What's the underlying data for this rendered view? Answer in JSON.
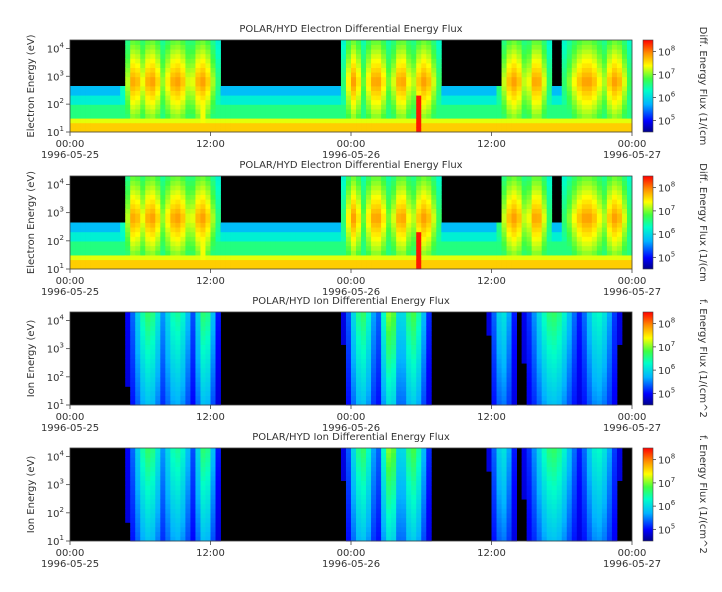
{
  "chart_data": [
    {
      "type": "heatmap",
      "title": "POLAR/HYD  Electron Differential Energy Flux",
      "ylabel": "Electron Energy (eV)",
      "colorbar_label": "Diff. Energy Flux (1/(cm",
      "y_scale": "log",
      "ylim": [
        10,
        20000
      ],
      "y_ticks": [
        "10",
        "10",
        "10",
        "10"
      ],
      "y_tick_exponents": [
        "1",
        "2",
        "3",
        "4"
      ],
      "x_ticks": [
        "00:00",
        "12:00",
        "00:00",
        "12:00",
        "00:00"
      ],
      "x_dates": [
        "1996-05-25",
        "",
        "1996-05-26",
        "",
        "1996-05-27"
      ],
      "colorbar_ticks": [
        "10",
        "10",
        "10",
        "10"
      ],
      "colorbar_exponents": [
        "5",
        "6",
        "7",
        "8"
      ]
    },
    {
      "type": "heatmap",
      "title": "POLAR/HYD  Electron Differential Energy Flux",
      "ylabel": "Electron Energy (eV)",
      "colorbar_label": "Diff. Energy Flux (1/(cm",
      "y_scale": "log",
      "ylim": [
        10,
        20000
      ],
      "y_ticks": [
        "10",
        "10",
        "10",
        "10"
      ],
      "y_tick_exponents": [
        "1",
        "2",
        "3",
        "4"
      ],
      "x_ticks": [
        "00:00",
        "12:00",
        "00:00",
        "12:00",
        "00:00"
      ],
      "x_dates": [
        "1996-05-25",
        "",
        "1996-05-26",
        "",
        "1996-05-27"
      ],
      "colorbar_ticks": [
        "10",
        "10",
        "10",
        "10"
      ],
      "colorbar_exponents": [
        "5",
        "6",
        "7",
        "8"
      ]
    },
    {
      "type": "heatmap",
      "title": "POLAR/HYD  Ion Differential Energy Flux",
      "ylabel": "Ion Energy (eV)",
      "colorbar_label": "f. Energy Flux (1/(cm^2",
      "y_scale": "log",
      "ylim": [
        10,
        20000
      ],
      "y_ticks": [
        "10",
        "10",
        "10",
        "10"
      ],
      "y_tick_exponents": [
        "1",
        "2",
        "3",
        "4"
      ],
      "x_ticks": [
        "00:00",
        "12:00",
        "00:00",
        "12:00",
        "00:00"
      ],
      "x_dates": [
        "1996-05-25",
        "",
        "1996-05-26",
        "",
        "1996-05-27"
      ],
      "colorbar_ticks": [
        "10",
        "10",
        "10",
        "10"
      ],
      "colorbar_exponents": [
        "5",
        "6",
        "7",
        "8"
      ]
    },
    {
      "type": "heatmap",
      "title": "POLAR/HYD  Ion Differential Energy Flux",
      "ylabel": "Ion Energy (eV)",
      "colorbar_label": "f. Energy Flux (1/(cm^2",
      "y_scale": "log",
      "ylim": [
        10,
        20000
      ],
      "y_ticks": [
        "10",
        "10",
        "10",
        "10"
      ],
      "y_tick_exponents": [
        "1",
        "2",
        "3",
        "4"
      ],
      "x_ticks": [
        "00:00",
        "12:00",
        "00:00",
        "12:00",
        "00:00"
      ],
      "x_dates": [
        "1996-05-25",
        "",
        "1996-05-26",
        "",
        "1996-05-27"
      ],
      "colorbar_ticks": [
        "10",
        "10",
        "10",
        "10"
      ],
      "colorbar_exponents": [
        "5",
        "6",
        "7",
        "8"
      ]
    }
  ]
}
